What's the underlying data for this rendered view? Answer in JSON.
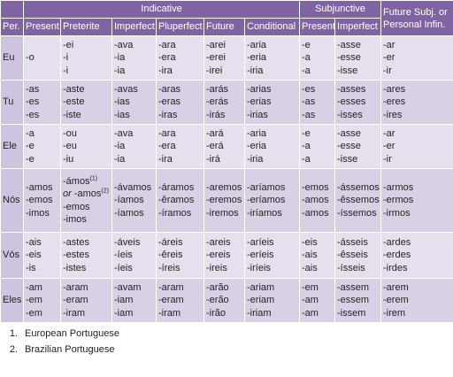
{
  "table": {
    "group_headers": [
      "Indicative",
      "Subjunctive",
      "Future Subj. or Personal Infin."
    ],
    "column_headers": [
      "Per.",
      "Present",
      "Preterite",
      "Imperfect",
      "Pluperfect",
      "Future",
      "Conditional",
      "Present",
      "Imperfect"
    ],
    "rows": [
      {
        "person": "Eu",
        "cells": [
          [
            "-o"
          ],
          [
            "-ei",
            "-i",
            "-i"
          ],
          [
            "-ava",
            "-ia",
            "-ia"
          ],
          [
            "-ara",
            "-era",
            "-ira"
          ],
          [
            "-arei",
            "-erei",
            "-irei"
          ],
          [
            "-aria",
            "-eria",
            "-iria"
          ],
          [
            "-e",
            "-a",
            "-a"
          ],
          [
            "-asse",
            "-esse",
            "-isse"
          ],
          [
            "-ar",
            "-er",
            "-ir"
          ]
        ]
      },
      {
        "person": "Tu",
        "cells": [
          [
            "-as",
            "-es",
            "-es"
          ],
          [
            "-aste",
            "-este",
            "-iste"
          ],
          [
            "-avas",
            "-ias",
            "-ias"
          ],
          [
            "-aras",
            "-eras",
            "-iras"
          ],
          [
            "-arás",
            "-erás",
            "-irás"
          ],
          [
            "-arias",
            "-erias",
            "-irias"
          ],
          [
            "-es",
            "-as",
            "-as"
          ],
          [
            "-asses",
            "-esses",
            "-isses"
          ],
          [
            "-ares",
            "-eres",
            "-ires"
          ]
        ]
      },
      {
        "person": "Ele",
        "cells": [
          [
            "-a",
            "-e",
            "-e"
          ],
          [
            "-ou",
            "-eu",
            "-iu"
          ],
          [
            "-ava",
            "-ia",
            "-ia"
          ],
          [
            "-ara",
            "-era",
            "-ira"
          ],
          [
            "-ará",
            "-erá",
            "-irá"
          ],
          [
            "-aria",
            "-eria",
            "-iria"
          ],
          [
            "-e",
            "-a",
            "-a"
          ],
          [
            "-asse",
            "-esse",
            "-isse"
          ],
          [
            "-ar",
            "-er",
            "-ir"
          ]
        ]
      },
      {
        "person": "Nós",
        "cells": [
          [
            "-amos",
            "-emos",
            "-imos"
          ],
          [
            {
              "text": "-ámos",
              "note": "(1)"
            },
            {
              "prefix": "or",
              "text": " -amos",
              "note": "(2)"
            },
            "-emos",
            "-imos"
          ],
          [
            "-ávamos",
            "-íamos",
            "-íamos"
          ],
          [
            "-áramos",
            "-êramos",
            "-íramos"
          ],
          [
            "-aremos",
            "-eremos",
            "-iremos"
          ],
          [
            "-aríamos",
            "-eríamos",
            "-iríamos"
          ],
          [
            "-emos",
            "-amos",
            "-amos"
          ],
          [
            "-ássemos",
            "-êssemos",
            "-íssemos"
          ],
          [
            "-armos",
            "-ermos",
            "-irmos"
          ]
        ]
      },
      {
        "person": "Vós",
        "cells": [
          [
            "-ais",
            "-eis",
            "-is"
          ],
          [
            "-astes",
            "-estes",
            "-istes"
          ],
          [
            "-áveis",
            "-íeis",
            "-íeis"
          ],
          [
            "-áreis",
            "-êreis",
            "-íreis"
          ],
          [
            "-areis",
            "-ereis",
            "-ireis"
          ],
          [
            "-aríeis",
            "-eríeis",
            "-iríeis"
          ],
          [
            "-eis",
            "-ais",
            "-ais"
          ],
          [
            "-ásseis",
            "-êsseis",
            "-ísseis"
          ],
          [
            "-ardes",
            "-erdes",
            "-irdes"
          ]
        ]
      },
      {
        "person": "Eles",
        "cells": [
          [
            "-am",
            "-em",
            "-em"
          ],
          [
            "-aram",
            "-eram",
            "-iram"
          ],
          [
            "-avam",
            "-iam",
            "-iam"
          ],
          [
            "-aram",
            "-eram",
            "-iram"
          ],
          [
            "-arão",
            "-erão",
            "-irão"
          ],
          [
            "-ariam",
            "-eriam",
            "-iriam"
          ],
          [
            "-em",
            "-am",
            "-am"
          ],
          [
            "-assem",
            "-essem",
            "-issem"
          ],
          [
            "-arem",
            "-erem",
            "-irem"
          ]
        ]
      }
    ]
  },
  "footnotes": [
    {
      "marker": "1.",
      "text": "European Portuguese"
    },
    {
      "marker": "2.",
      "text": "Brazilian Portuguese"
    }
  ]
}
